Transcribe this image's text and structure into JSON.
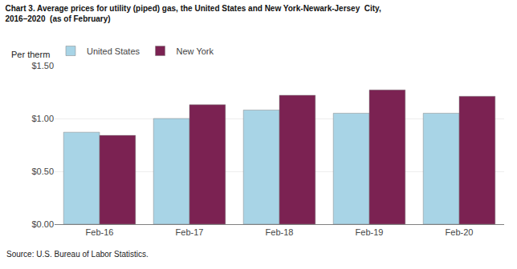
{
  "chart_data": {
    "type": "bar",
    "title": "Chart 3. Average prices for utility (piped) gas, the United States and New York-Newark-Jersey  City,\n2016–2020  (as of February)",
    "ylabel": "Per therm",
    "annotations": [
      "Source: U.S. Bureau of Labor Statistics."
    ],
    "categories": [
      "Feb-16",
      "Feb-17",
      "Feb-18",
      "Feb-19",
      "Feb-20"
    ],
    "series": [
      {
        "name": "United States",
        "color": "#a8d4e6",
        "values": [
          0.87,
          1.0,
          1.08,
          1.05,
          1.05
        ]
      },
      {
        "name": "New York",
        "color": "#7b2252",
        "values": [
          0.84,
          1.13,
          1.22,
          1.27,
          1.21
        ]
      }
    ],
    "ylim": [
      0,
      1.5
    ],
    "yticks": [
      {
        "value": 0,
        "label": "$0.00"
      },
      {
        "value": 0.5,
        "label": "$0.50"
      },
      {
        "value": 1,
        "label": "$1.00"
      },
      {
        "value": 1.5,
        "label": "$1.50"
      }
    ],
    "grid": true,
    "legend": "upper left"
  }
}
